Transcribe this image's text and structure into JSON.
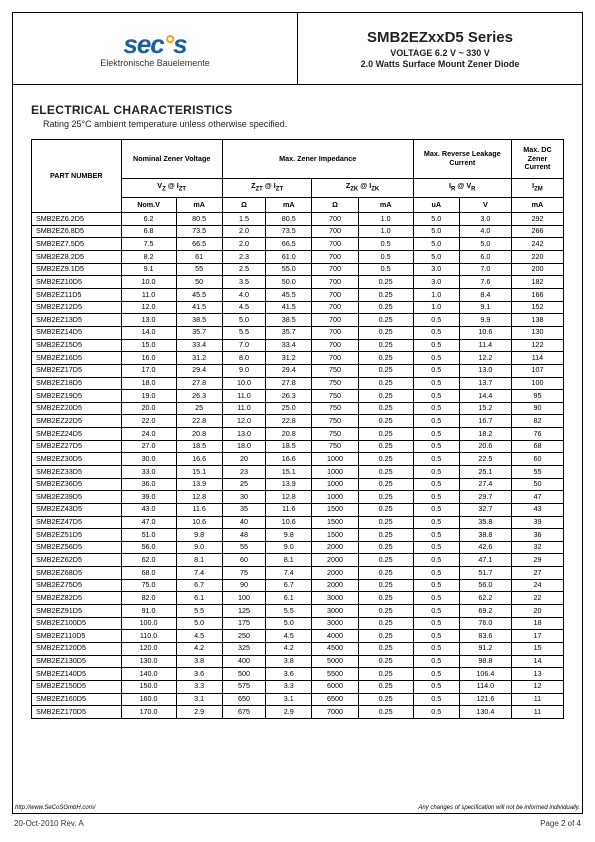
{
  "logo": {
    "text": "secos",
    "subtitle": "Elektronische Bauelemente"
  },
  "header": {
    "series": "SMB2EZxxD5 Series",
    "voltage": "VOLTAGE 6.2 V ~ 330 V",
    "desc": "2.0 Watts Surface Mount Zener Diode"
  },
  "section": {
    "title": "ELECTRICAL CHARACTERISTICS",
    "subtitle": "Rating 25°C ambient temperature unless otherwise specified."
  },
  "table": {
    "group_headers": {
      "part": "PART NUMBER",
      "nominal": "Nominal Zener Voltage",
      "impedance": "Max. Zener Impedance",
      "leakage": "Max. Reverse Leakage Current",
      "dcz": "Max. DC Zener Current"
    },
    "sub_headers": {
      "vz": "V₂ @ IZT",
      "zzt": "ZZT @ IZT",
      "zzk": "ZZK @ IZK",
      "ir": "IR @ VR",
      "izm": "IZM"
    },
    "unit_headers": [
      "Nom.V",
      "mA",
      "Ω",
      "mA",
      "Ω",
      "mA",
      "uA",
      "V",
      "mA"
    ],
    "rows": [
      [
        "SMB2EZ6.2D5",
        "6.2",
        "80.5",
        "1.5",
        "80.5",
        "700",
        "1.0",
        "5.0",
        "3.0",
        "292"
      ],
      [
        "SMB2EZ6.8D5",
        "6.8",
        "73.5",
        "2.0",
        "73.5",
        "700",
        "1.0",
        "5.0",
        "4.0",
        "266"
      ],
      [
        "SMB2EZ7.5D5",
        "7.5",
        "66.5",
        "2.0",
        "66.5",
        "700",
        "0.5",
        "5.0",
        "5.0",
        "242"
      ],
      [
        "SMB2EZ8.2D5",
        "8.2",
        "61",
        "2.3",
        "61.0",
        "700",
        "0.5",
        "5.0",
        "6.0",
        "220"
      ],
      [
        "SMB2EZ9.1D5",
        "9.1",
        "55",
        "2.5",
        "55.0",
        "700",
        "0.5",
        "3.0",
        "7.0",
        "200"
      ],
      [
        "SMB2EZ10D5",
        "10.0",
        "50",
        "3.5",
        "50.0",
        "700",
        "0.25",
        "3.0",
        "7.6",
        "182"
      ],
      [
        "SMB2EZ11D5",
        "11.0",
        "45.5",
        "4.0",
        "45.5",
        "700",
        "0.25",
        "1.0",
        "8.4",
        "166"
      ],
      [
        "SMB2EZ12D5",
        "12.0",
        "41.5",
        "4.5",
        "41.5",
        "700",
        "0.25",
        "1.0",
        "9.1",
        "152"
      ],
      [
        "SMB2EZ13D5",
        "13.0",
        "38.5",
        "5.0",
        "38.5",
        "700",
        "0.25",
        "0.5",
        "9.9",
        "138"
      ],
      [
        "SMB2EZ14D5",
        "14.0",
        "35.7",
        "5.5",
        "35.7",
        "700",
        "0.25",
        "0.5",
        "10.6",
        "130"
      ],
      [
        "SMB2EZ15D5",
        "15.0",
        "33.4",
        "7.0",
        "33.4",
        "700",
        "0.25",
        "0.5",
        "11.4",
        "122"
      ],
      [
        "SMB2EZ16D5",
        "16.0",
        "31.2",
        "8.0",
        "31.2",
        "700",
        "0.25",
        "0.5",
        "12.2",
        "114"
      ],
      [
        "SMB2EZ17D5",
        "17.0",
        "29.4",
        "9.0",
        "29.4",
        "750",
        "0.25",
        "0.5",
        "13.0",
        "107"
      ],
      [
        "SMB2EZ18D5",
        "18.0",
        "27.8",
        "10.0",
        "27.8",
        "750",
        "0.25",
        "0.5",
        "13.7",
        "100"
      ],
      [
        "SMB2EZ19D5",
        "19.0",
        "26.3",
        "11.0",
        "26.3",
        "750",
        "0.25",
        "0.5",
        "14.4",
        "95"
      ],
      [
        "SMB2EZ20D5",
        "20.0",
        "25",
        "11.0",
        "25.0",
        "750",
        "0.25",
        "0.5",
        "15.2",
        "90"
      ],
      [
        "SMB2EZ22D5",
        "22.0",
        "22.8",
        "12.0",
        "22.8",
        "750",
        "0.25",
        "0.5",
        "16.7",
        "82"
      ],
      [
        "SMB2EZ24D5",
        "24.0",
        "20.8",
        "13.0",
        "20.8",
        "750",
        "0.25",
        "0.5",
        "18.2",
        "76"
      ],
      [
        "SMB2EZ27D5",
        "27.0",
        "18.5",
        "18.0",
        "18.5",
        "750",
        "0.25",
        "0.5",
        "20.6",
        "68"
      ],
      [
        "SMB2EZ30D5",
        "30.0",
        "16.6",
        "20",
        "16.6",
        "1000",
        "0.25",
        "0.5",
        "22.5",
        "60"
      ],
      [
        "SMB2EZ33D5",
        "33.0",
        "15.1",
        "23",
        "15.1",
        "1000",
        "0.25",
        "0.5",
        "25.1",
        "55"
      ],
      [
        "SMB2EZ36D5",
        "36.0",
        "13.9",
        "25",
        "13.9",
        "1000",
        "0.25",
        "0.5",
        "27.4",
        "50"
      ],
      [
        "SMB2EZ39D5",
        "39.0",
        "12.8",
        "30",
        "12.8",
        "1000",
        "0.25",
        "0.5",
        "29.7",
        "47"
      ],
      [
        "SMB2EZ43D5",
        "43.0",
        "11.6",
        "35",
        "11.6",
        "1500",
        "0.25",
        "0.5",
        "32.7",
        "43"
      ],
      [
        "SMB2EZ47D5",
        "47.0",
        "10.6",
        "40",
        "10.6",
        "1500",
        "0.25",
        "0.5",
        "35.8",
        "39"
      ],
      [
        "SMB2EZ51D5",
        "51.0",
        "9.8",
        "48",
        "9.8",
        "1500",
        "0.25",
        "0.5",
        "38.8",
        "36"
      ],
      [
        "SMB2EZ56D5",
        "56.0",
        "9.0",
        "55",
        "9.0",
        "2000",
        "0.25",
        "0.5",
        "42.6",
        "32"
      ],
      [
        "SMB2EZ62D5",
        "62.0",
        "8.1",
        "60",
        "8.1",
        "2000",
        "0.25",
        "0.5",
        "47.1",
        "29"
      ],
      [
        "SMB2EZ68D5",
        "68.0",
        "7.4",
        "75",
        "7.4",
        "2000",
        "0.25",
        "0.5",
        "51.7",
        "27"
      ],
      [
        "SMB2EZ75D5",
        "75.0",
        "6.7",
        "90",
        "6.7",
        "2000",
        "0.25",
        "0.5",
        "56.0",
        "24"
      ],
      [
        "SMB2EZ82D5",
        "82.0",
        "6.1",
        "100",
        "6.1",
        "3000",
        "0.25",
        "0.5",
        "62.2",
        "22"
      ],
      [
        "SMB2EZ91D5",
        "91.0",
        "5.5",
        "125",
        "5.5",
        "3000",
        "0.25",
        "0.5",
        "69.2",
        "20"
      ],
      [
        "SMB2EZ100D5",
        "100.0",
        "5.0",
        "175",
        "5.0",
        "3000",
        "0.25",
        "0.5",
        "76.0",
        "18"
      ],
      [
        "SMB2EZ110D5",
        "110.0",
        "4.5",
        "250",
        "4.5",
        "4000",
        "0.25",
        "0.5",
        "83.6",
        "17"
      ],
      [
        "SMB2EZ120D5",
        "120.0",
        "4.2",
        "325",
        "4.2",
        "4500",
        "0.25",
        "0.5",
        "91.2",
        "15"
      ],
      [
        "SMB2EZ130D5",
        "130.0",
        "3.8",
        "400",
        "3.8",
        "5000",
        "0.25",
        "0.5",
        "98.8",
        "14"
      ],
      [
        "SMB2EZ140D5",
        "140.0",
        "3.6",
        "500",
        "3.6",
        "5500",
        "0.25",
        "0.5",
        "106.4",
        "13"
      ],
      [
        "SMB2EZ150D5",
        "150.0",
        "3.3",
        "575",
        "3.3",
        "6000",
        "0.25",
        "0.5",
        "114.0",
        "12"
      ],
      [
        "SMB2EZ160D5",
        "160.0",
        "3.1",
        "650",
        "3.1",
        "6500",
        "0.25",
        "0.5",
        "121.6",
        "11"
      ],
      [
        "SMB2EZ170D5",
        "170.0",
        "2.9",
        "675",
        "2.9",
        "7000",
        "0.25",
        "0.5",
        "130.4",
        "11"
      ]
    ]
  },
  "footer": {
    "url": "http://www.SeCoSGmbH.com/",
    "disclaimer": "Any changes of specification will not be informed individually.",
    "date": "20-Oct-2010 Rev. A",
    "page": "Page  2  of  4"
  },
  "colors": {
    "logo_blue": "#1a5fa0",
    "logo_orange": "#f0a020",
    "border": "#000000",
    "text": "#222222"
  }
}
